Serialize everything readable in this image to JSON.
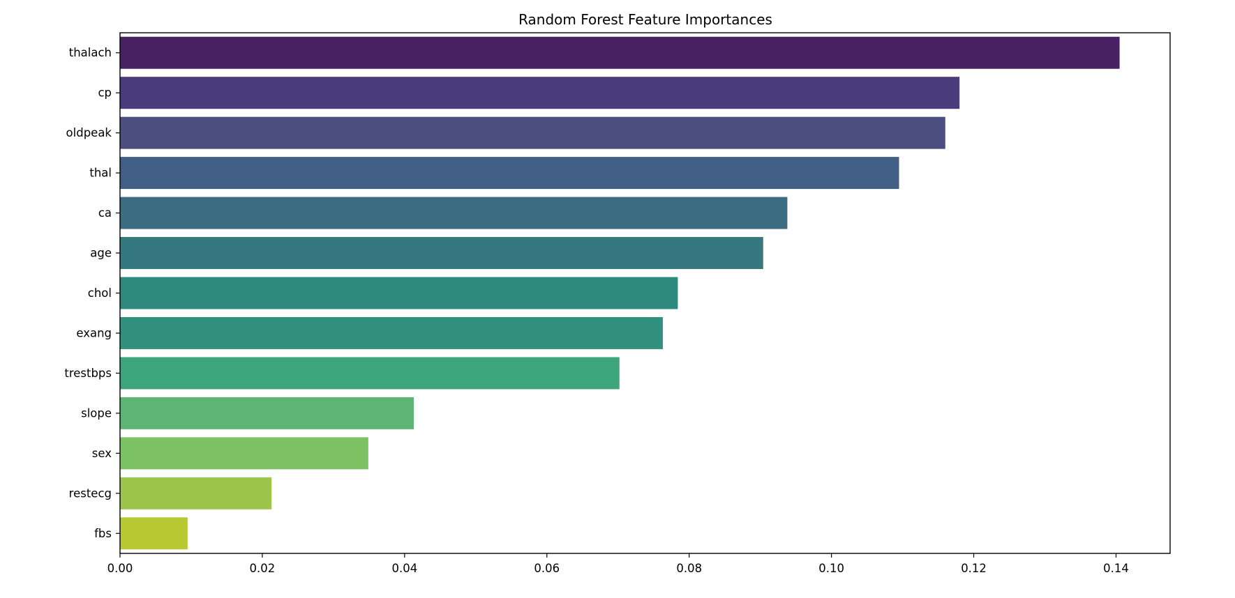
{
  "chart_data": {
    "type": "bar",
    "orientation": "horizontal",
    "title": "Random Forest Feature Importances",
    "xlabel": "",
    "ylabel": "",
    "categories": [
      "thalach",
      "cp",
      "oldpeak",
      "thal",
      "ca",
      "age",
      "chol",
      "exang",
      "trestbps",
      "slope",
      "sex",
      "restecg",
      "fbs"
    ],
    "values": [
      0.1405,
      0.118,
      0.116,
      0.1095,
      0.0938,
      0.0904,
      0.0784,
      0.0763,
      0.0702,
      0.0413,
      0.0349,
      0.0213,
      0.0095
    ],
    "colors": [
      "#482163",
      "#4a3c7a",
      "#4b4f80",
      "#415e84",
      "#3b6c82",
      "#367880",
      "#2e8a7d",
      "#31917e",
      "#3da57a",
      "#5db474",
      "#7dc165",
      "#9cc54c",
      "#b9c934"
    ],
    "xlim": [
      0,
      0.1476
    ],
    "xticks": [
      0.0,
      0.02,
      0.04,
      0.06,
      0.08,
      0.1,
      0.12,
      0.14
    ],
    "xtick_labels": [
      "0.00",
      "0.02",
      "0.04",
      "0.06",
      "0.08",
      "0.10",
      "0.12",
      "0.14"
    ],
    "grid": false,
    "legend": "none"
  }
}
